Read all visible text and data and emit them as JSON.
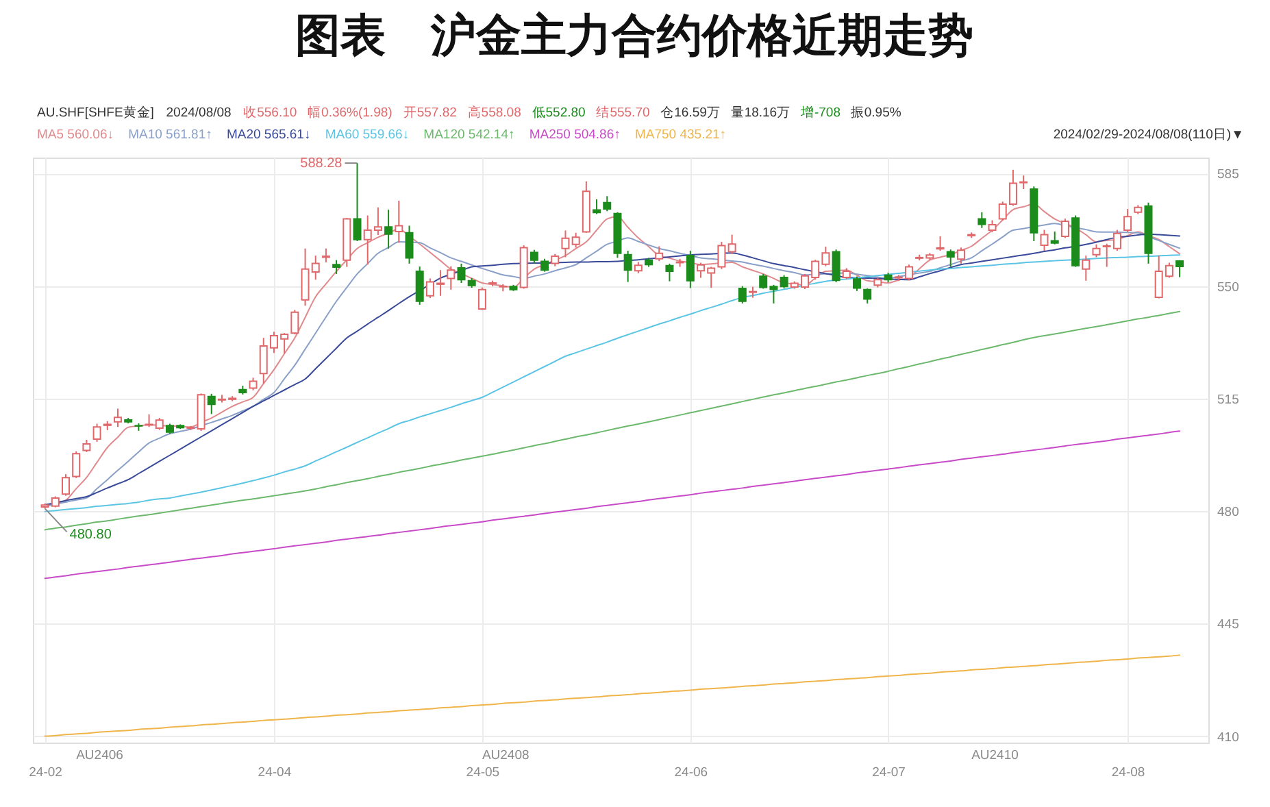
{
  "chart_data": {
    "type": "candlestick",
    "title": "图表　沪金主力合约价格近期走势",
    "subtitle": "AU.SHF[SHFE黄金]  2024/08/08  收556.10  幅0.36%(1.98)  开557.82  高558.08  低552.80  结555.70  仓16.59万  量18.16万  增-708  振0.95%",
    "categories": [
      "24-02",
      null,
      null,
      null,
      null,
      null,
      null,
      null,
      null,
      null,
      null,
      null,
      null,
      null,
      null,
      null,
      null,
      null,
      null,
      null,
      null,
      null,
      "24-04",
      null,
      null,
      null,
      null,
      null,
      null,
      null,
      null,
      null,
      null,
      null,
      null,
      null,
      null,
      null,
      null,
      null,
      null,
      null,
      "24-05",
      null,
      null,
      null,
      null,
      null,
      null,
      null,
      null,
      null,
      null,
      null,
      null,
      null,
      null,
      null,
      null,
      null,
      null,
      null,
      "24-06",
      null,
      null,
      null,
      null,
      null,
      null,
      null,
      null,
      null,
      null,
      null,
      null,
      null,
      null,
      null,
      null,
      null,
      null,
      "24-07",
      null,
      null,
      null,
      null,
      null,
      null,
      null,
      null,
      null,
      null,
      null,
      null,
      null,
      null,
      null,
      null,
      null,
      null,
      null,
      null,
      null,
      null,
      "24-08",
      null,
      null,
      null,
      null,
      null
    ],
    "ohlc": [
      [
        481.3,
        482.4,
        480.8,
        481.9
      ],
      [
        481.6,
        484.6,
        481.2,
        484.1
      ],
      [
        485.3,
        491.5,
        484.8,
        490.4
      ],
      [
        490.8,
        498.6,
        490.3,
        497.9
      ],
      [
        498.9,
        502.2,
        498.4,
        500.9
      ],
      [
        502.4,
        507.2,
        501.6,
        506.2
      ],
      [
        506.7,
        508.0,
        505.2,
        507.0
      ],
      [
        507.8,
        511.9,
        506.2,
        509.2
      ],
      [
        508.4,
        509.0,
        507.3,
        507.8
      ],
      [
        506.6,
        507.3,
        505.0,
        506.5
      ],
      [
        506.8,
        510.1,
        506.2,
        507.0
      ],
      [
        505.8,
        509.0,
        505.3,
        508.3
      ],
      [
        506.6,
        507.2,
        504.0,
        504.6
      ],
      [
        506.6,
        507.0,
        505.6,
        506.0
      ],
      [
        505.8,
        506.5,
        505.3,
        506.0
      ],
      [
        505.6,
        516.6,
        505.0,
        516.2
      ],
      [
        515.7,
        516.5,
        510.2,
        513.2
      ],
      [
        514.6,
        516.2,
        513.8,
        514.8
      ],
      [
        514.8,
        515.8,
        514.2,
        515.1
      ],
      [
        517.8,
        519.0,
        516.3,
        516.9
      ],
      [
        518.3,
        521.5,
        517.6,
        520.4
      ],
      [
        522.8,
        533.9,
        519.7,
        531.4
      ],
      [
        530.8,
        535.8,
        529.2,
        534.6
      ],
      [
        533.6,
        535.4,
        529.0,
        535.0
      ],
      [
        535.4,
        542.6,
        535.0,
        541.9
      ],
      [
        545.7,
        561.7,
        543.9,
        555.3
      ],
      [
        554.4,
        559.5,
        552.0,
        557.1
      ],
      [
        559.0,
        561.7,
        557.4,
        559.3
      ],
      [
        556.7,
        558.1,
        553.8,
        555.9
      ],
      [
        558.1,
        571.2,
        556.0,
        570.9
      ],
      [
        570.9,
        588.28,
        564.0,
        564.5
      ],
      [
        564.5,
        572.0,
        556.7,
        567.4
      ],
      [
        567.4,
        574.5,
        565.9,
        568.4
      ],
      [
        568.4,
        573.8,
        561.7,
        566.2
      ],
      [
        567.0,
        576.6,
        563.5,
        568.8
      ],
      [
        566.6,
        568.8,
        557.0,
        558.8
      ],
      [
        554.6,
        556.1,
        544.2,
        545.3
      ],
      [
        547.0,
        552.4,
        546.3,
        551.3
      ],
      [
        550.6,
        555.0,
        547.0,
        550.9
      ],
      [
        552.4,
        556.2,
        548.9,
        555.0
      ],
      [
        555.7,
        557.0,
        551.0,
        552.0
      ],
      [
        551.7,
        552.5,
        549.5,
        550.2
      ],
      [
        542.9,
        549.6,
        542.6,
        548.9
      ],
      [
        550.8,
        551.7,
        550.0,
        551.0
      ],
      [
        549.8,
        550.6,
        548.4,
        549.9
      ],
      [
        549.9,
        550.4,
        548.5,
        548.9
      ],
      [
        549.6,
        562.7,
        549.2,
        562.0
      ],
      [
        560.5,
        561.3,
        557.0,
        558.1
      ],
      [
        557.7,
        558.5,
        554.5,
        555.0
      ],
      [
        557.1,
        560.0,
        556.2,
        559.3
      ],
      [
        561.7,
        567.3,
        559.0,
        564.9
      ],
      [
        563.0,
        566.6,
        562.0,
        565.2
      ],
      [
        566.9,
        582.6,
        566.6,
        579.5
      ],
      [
        573.7,
        577.0,
        572.4,
        572.9
      ],
      [
        576.0,
        578.0,
        573.3,
        574.0
      ],
      [
        572.6,
        573.0,
        558.8,
        560.2
      ],
      [
        559.8,
        561.0,
        551.3,
        555.0
      ],
      [
        554.8,
        557.5,
        554.0,
        556.5
      ],
      [
        558.1,
        558.8,
        556.0,
        556.7
      ],
      [
        558.5,
        562.4,
        557.8,
        560.2
      ],
      [
        556.4,
        557.0,
        551.5,
        554.6
      ],
      [
        557.3,
        558.5,
        556.0,
        557.5
      ],
      [
        559.5,
        561.0,
        549.4,
        551.7
      ],
      [
        554.8,
        557.3,
        552.6,
        556.6
      ],
      [
        554.1,
        556.0,
        549.5,
        555.6
      ],
      [
        556.0,
        563.8,
        555.3,
        562.6
      ],
      [
        560.7,
        566.0,
        560.0,
        563.1
      ],
      [
        549.3,
        550.0,
        544.6,
        545.3
      ],
      [
        548.1,
        549.8,
        546.4,
        548.3
      ],
      [
        553.1,
        553.8,
        549.2,
        549.6
      ],
      [
        549.9,
        550.4,
        544.6,
        549.0
      ],
      [
        552.7,
        553.4,
        549.3,
        549.9
      ],
      [
        549.7,
        551.5,
        549.2,
        550.9
      ],
      [
        549.7,
        553.8,
        549.1,
        553.2
      ],
      [
        552.7,
        558.2,
        552.0,
        557.7
      ],
      [
        556.8,
        562.3,
        556.2,
        560.3
      ],
      [
        560.7,
        561.4,
        551.2,
        551.8
      ],
      [
        552.7,
        555.6,
        552.2,
        554.6
      ],
      [
        552.2,
        553.0,
        548.5,
        549.4
      ],
      [
        548.9,
        549.3,
        544.6,
        546.0
      ],
      [
        550.3,
        552.6,
        549.6,
        552.0
      ],
      [
        553.4,
        554.2,
        551.2,
        552.0
      ],
      [
        552.6,
        553.5,
        551.6,
        552.8
      ],
      [
        552.4,
        556.7,
        551.8,
        556.0
      ],
      [
        558.7,
        559.8,
        558.0,
        558.9
      ],
      [
        558.8,
        560.3,
        558.2,
        559.7
      ],
      [
        561.6,
        565.5,
        561.0,
        561.9
      ],
      [
        560.7,
        561.4,
        556.0,
        559.1
      ],
      [
        558.4,
        562.0,
        557.0,
        561.2
      ],
      [
        565.7,
        566.7,
        565.0,
        566.0
      ],
      [
        570.9,
        573.0,
        568.1,
        569.2
      ],
      [
        567.4,
        570.5,
        566.8,
        569.1
      ],
      [
        570.9,
        576.3,
        570.4,
        575.5
      ],
      [
        575.5,
        586.2,
        575.0,
        582.0
      ],
      [
        582.2,
        584.4,
        580.2,
        582.4
      ],
      [
        580.2,
        581.0,
        564.0,
        566.6
      ],
      [
        562.7,
        567.5,
        561.0,
        566.0
      ],
      [
        564.1,
        567.0,
        563.0,
        563.4
      ],
      [
        565.5,
        571.0,
        565.0,
        570.2
      ],
      [
        571.2,
        572.0,
        556.0,
        556.4
      ],
      [
        555.3,
        559.5,
        551.7,
        558.1
      ],
      [
        559.8,
        563.0,
        559.0,
        561.7
      ],
      [
        562.3,
        563.2,
        556.0,
        562.5
      ],
      [
        561.7,
        567.5,
        561.0,
        566.4
      ],
      [
        567.4,
        574.0,
        566.8,
        571.6
      ],
      [
        573.0,
        575.2,
        572.4,
        574.5
      ],
      [
        574.9,
        576.0,
        557.0,
        560.2
      ],
      [
        546.5,
        559.5,
        546.2,
        554.6
      ],
      [
        553.1,
        557.3,
        552.6,
        556.4
      ],
      [
        557.82,
        558.08,
        552.8,
        556.1
      ]
    ],
    "colors": [
      "#e0686b",
      "#e0686b",
      "#e0686b",
      "#e0686b",
      "#e0686b",
      "#e0686b",
      "#e0686b",
      "#e0686b",
      "#1b8c1b",
      "#1b8c1b",
      "#e0686b",
      "#e0686b",
      "#1b8c1b",
      "#1b8c1b",
      "#e0686b",
      "#e0686b",
      "#1b8c1b",
      "#e0686b",
      "#e0686b",
      "#1b8c1b",
      "#e0686b",
      "#e0686b",
      "#e0686b",
      "#e0686b",
      "#e0686b",
      "#e0686b",
      "#e0686b",
      "#e0686b",
      "#1b8c1b",
      "#e0686b",
      "#1b8c1b",
      "#e0686b",
      "#e0686b",
      "#1b8c1b",
      "#e0686b",
      "#1b8c1b",
      "#1b8c1b",
      "#e0686b",
      "#e0686b",
      "#e0686b",
      "#1b8c1b",
      "#1b8c1b",
      "#e0686b",
      "#e0686b",
      "#e0686b",
      "#1b8c1b",
      "#e0686b",
      "#1b8c1b",
      "#1b8c1b",
      "#e0686b",
      "#e0686b",
      "#e0686b",
      "#e0686b",
      "#1b8c1b",
      "#1b8c1b",
      "#1b8c1b",
      "#1b8c1b",
      "#e0686b",
      "#1b8c1b",
      "#e0686b",
      "#1b8c1b",
      "#e0686b",
      "#1b8c1b",
      "#e0686b",
      "#e0686b",
      "#e0686b",
      "#e0686b",
      "#1b8c1b",
      "#e0686b",
      "#1b8c1b",
      "#1b8c1b",
      "#1b8c1b",
      "#e0686b",
      "#e0686b",
      "#e0686b",
      "#e0686b",
      "#1b8c1b",
      "#e0686b",
      "#1b8c1b",
      "#1b8c1b",
      "#e0686b",
      "#1b8c1b",
      "#e0686b",
      "#e0686b",
      "#e0686b",
      "#e0686b",
      "#e0686b",
      "#1b8c1b",
      "#e0686b",
      "#e0686b",
      "#1b8c1b",
      "#e0686b",
      "#e0686b",
      "#e0686b",
      "#e0686b",
      "#1b8c1b",
      "#e0686b",
      "#1b8c1b",
      "#e0686b",
      "#1b8c1b",
      "#e0686b",
      "#e0686b",
      "#e0686b",
      "#e0686b",
      "#e0686b",
      "#e0686b",
      "#1b8c1b",
      "#e0686b",
      "#e0686b",
      "#1b8c1b"
    ],
    "series": [
      {
        "name": "MA5 560.06↓",
        "type": "line",
        "color": "#e08a8e",
        "values": [
          481.4,
          482.4,
          483.4,
          487.0,
          490.5,
          495.2,
          499.8,
          503.0,
          506.1,
          506.5,
          506.9,
          506.7,
          506.5,
          506.4,
          506.2,
          507.6,
          509.0,
          510.8,
          512.6,
          514.0,
          515.4,
          519.7,
          524.0,
          529.0,
          533.9,
          540.3,
          546.7,
          550.7,
          554.6,
          558.2,
          561.7,
          563.5,
          565.2,
          566.5,
          567.8,
          565.5,
          563.1,
          560.5,
          557.9,
          555.3,
          553.9,
          552.4,
          551.0,
          550.5,
          550.1,
          549.6,
          552.5,
          555.3,
          556.7,
          558.1,
          559.5,
          561.7,
          563.8,
          567.4,
          570.9,
          571.6,
          568.3,
          565.0,
          562.3,
          559.5,
          558.7,
          557.8,
          557.3,
          556.7,
          556.9,
          557.2,
          557.4,
          556.0,
          554.9,
          553.8,
          552.4,
          551.0,
          550.7,
          550.3,
          552.5,
          554.6,
          554.8,
          555.0,
          553.4,
          551.7,
          551.4,
          551.0,
          551.9,
          552.7,
          555.4,
          558.1,
          559.0,
          559.8,
          561.1,
          562.4,
          564.9,
          567.4,
          570.6,
          573.8,
          574.7,
          575.5,
          573.2,
          570.9,
          569.5,
          568.1,
          566.0,
          563.8,
          564.2,
          564.5,
          565.7,
          566.9,
          565.7,
          564.5,
          562.3,
          560.1
        ]
      },
      {
        "name": "MA10 561.81↑",
        "type": "line",
        "color": "#8aa0c8",
        "values": [
          481.5,
          482.2,
          482.8,
          483.5,
          484.1,
          487.0,
          489.8,
          492.7,
          495.5,
          498.4,
          501.2,
          502.7,
          504.1,
          504.8,
          505.5,
          506.6,
          507.6,
          508.7,
          509.8,
          511.2,
          512.6,
          514.8,
          516.9,
          521.2,
          525.4,
          530.4,
          535.4,
          540.4,
          545.3,
          549.6,
          553.8,
          557.0,
          560.2,
          562.0,
          563.8,
          563.7,
          563.5,
          561.9,
          560.4,
          558.8,
          557.7,
          556.6,
          555.5,
          554.5,
          553.5,
          553.0,
          552.4,
          553.1,
          553.8,
          554.8,
          555.7,
          556.7,
          558.8,
          560.9,
          563.0,
          564.0,
          565.0,
          563.9,
          562.8,
          561.7,
          561.0,
          560.2,
          559.5,
          558.8,
          558.5,
          558.2,
          557.8,
          557.5,
          556.8,
          556.2,
          555.5,
          554.8,
          554.2,
          553.5,
          553.7,
          553.8,
          554.0,
          554.1,
          553.7,
          553.3,
          552.8,
          552.4,
          553.0,
          553.5,
          554.1,
          554.6,
          555.7,
          556.7,
          557.8,
          558.8,
          561.0,
          563.1,
          565.3,
          567.4,
          567.9,
          568.5,
          569.0,
          569.5,
          568.9,
          568.2,
          567.6,
          566.9,
          566.8,
          566.8,
          566.7,
          566.6,
          565.4,
          564.2,
          563.0,
          561.8
        ]
      },
      {
        "name": "MA20 565.61↓",
        "type": "line",
        "color": "#3a4a9a",
        "values": [
          482.0,
          482.6,
          483.3,
          483.9,
          484.5,
          485.8,
          487.2,
          488.5,
          489.8,
          491.7,
          493.6,
          495.5,
          497.4,
          499.3,
          501.2,
          503.1,
          505.0,
          506.9,
          508.8,
          510.7,
          512.6,
          514.3,
          516.0,
          517.7,
          519.4,
          521.1,
          524.3,
          527.5,
          530.7,
          533.9,
          536.0,
          538.2,
          540.3,
          542.4,
          544.6,
          546.7,
          548.6,
          550.6,
          552.5,
          553.7,
          554.8,
          556.0,
          556.3,
          556.5,
          556.8,
          557.0,
          557.1,
          557.2,
          557.2,
          557.3,
          557.4,
          557.5,
          557.5,
          557.6,
          557.6,
          557.7,
          558.0,
          558.2,
          558.5,
          558.8,
          559.1,
          559.4,
          559.7,
          559.9,
          560.0,
          560.2,
          560.3,
          559.7,
          558.8,
          557.9,
          557.0,
          556.4,
          555.8,
          555.1,
          554.5,
          553.9,
          553.3,
          552.7,
          552.6,
          552.5,
          552.4,
          552.2,
          552.1,
          552.0,
          552.9,
          553.9,
          554.8,
          555.8,
          556.7,
          557.2,
          557.7,
          558.2,
          558.7,
          559.2,
          559.7,
          560.2,
          560.8,
          561.3,
          561.9,
          562.4,
          563.0,
          563.7,
          564.5,
          565.2,
          565.5,
          565.9,
          566.2,
          566.0,
          565.8,
          565.6
        ]
      },
      {
        "name": "MA60 559.66↓",
        "type": "line",
        "color": "#5cc4e4",
        "values": [
          479.9,
          480.2,
          480.5,
          480.8,
          481.1,
          481.5,
          481.8,
          482.1,
          482.4,
          482.8,
          483.4,
          483.8,
          484.1,
          484.7,
          485.3,
          485.9,
          486.6,
          487.3,
          488.0,
          488.7,
          489.5,
          490.3,
          491.2,
          492.2,
          493.1,
          494.1,
          495.6,
          497.0,
          498.5,
          499.9,
          501.4,
          502.8,
          504.3,
          505.7,
          507.2,
          508.2,
          509.3,
          510.3,
          511.3,
          512.3,
          513.4,
          514.4,
          515.4,
          517.0,
          518.6,
          520.2,
          521.8,
          523.4,
          525.0,
          526.6,
          528.2,
          529.3,
          530.4,
          531.5,
          532.6,
          533.8,
          534.9,
          536.0,
          537.1,
          538.2,
          539.2,
          540.3,
          541.3,
          542.4,
          543.4,
          544.4,
          545.5,
          546.5,
          547.1,
          547.8,
          548.4,
          549.0,
          549.6,
          550.3,
          550.9,
          551.5,
          551.9,
          552.2,
          552.6,
          552.9,
          553.3,
          553.6,
          554.0,
          554.3,
          554.7,
          555.0,
          555.3,
          555.5,
          555.8,
          556.0,
          556.3,
          556.5,
          556.8,
          557.0,
          557.3,
          557.5,
          557.7,
          557.9,
          558.1,
          558.2,
          558.4,
          558.6,
          558.8,
          558.9,
          559.0,
          559.2,
          559.3,
          559.4,
          559.6,
          559.7
        ]
      },
      {
        "name": "MA120 542.14↑",
        "type": "line",
        "color": "#6cb86c",
        "values": [
          474.2,
          474.7,
          475.1,
          475.6,
          476.1,
          476.6,
          477.0,
          477.5,
          478.0,
          478.5,
          478.9,
          479.4,
          479.9,
          480.4,
          480.9,
          481.4,
          481.9,
          482.4,
          482.9,
          483.4,
          483.8,
          484.3,
          484.8,
          485.3,
          485.8,
          486.3,
          486.9,
          487.6,
          488.2,
          488.9,
          489.5,
          490.1,
          490.8,
          491.4,
          492.1,
          492.7,
          493.3,
          494.0,
          494.6,
          495.2,
          495.9,
          496.5,
          497.1,
          497.7,
          498.4,
          499.0,
          499.7,
          500.4,
          501.0,
          501.7,
          502.4,
          503.1,
          503.7,
          504.4,
          505.1,
          505.8,
          506.5,
          507.1,
          507.8,
          508.5,
          509.2,
          509.9,
          510.6,
          511.3,
          512.0,
          512.7,
          513.4,
          514.1,
          514.8,
          515.5,
          516.2,
          516.8,
          517.5,
          518.2,
          518.8,
          519.5,
          520.2,
          520.8,
          521.5,
          522.2,
          522.8,
          523.5,
          524.3,
          525.0,
          525.8,
          526.5,
          527.3,
          528.0,
          528.8,
          529.5,
          530.3,
          531.0,
          531.8,
          532.5,
          533.3,
          534.0,
          534.6,
          535.1,
          535.7,
          536.3,
          536.9,
          537.4,
          538.0,
          538.6,
          539.2,
          539.8,
          540.3,
          540.9,
          541.5,
          542.1
        ]
      },
      {
        "name": "MA250 504.86↑",
        "type": "line",
        "color": "#c84ac8",
        "values": [
          459.1,
          459.5,
          459.9,
          460.4,
          460.8,
          461.2,
          461.6,
          462.0,
          462.5,
          462.9,
          463.3,
          463.7,
          464.1,
          464.6,
          465.0,
          465.4,
          465.8,
          466.2,
          466.7,
          467.1,
          467.5,
          467.9,
          468.3,
          468.8,
          469.2,
          469.6,
          470.0,
          470.4,
          470.9,
          471.3,
          471.7,
          472.1,
          472.5,
          473.0,
          473.4,
          473.8,
          474.2,
          474.6,
          475.1,
          475.5,
          475.9,
          476.3,
          476.7,
          477.2,
          477.6,
          478.0,
          478.4,
          478.8,
          479.3,
          479.7,
          480.1,
          480.5,
          480.9,
          481.4,
          481.8,
          482.2,
          482.6,
          483.0,
          483.5,
          483.9,
          484.3,
          484.7,
          485.1,
          485.6,
          486.0,
          486.4,
          486.8,
          487.2,
          487.7,
          488.1,
          488.5,
          488.9,
          489.3,
          489.8,
          490.2,
          490.6,
          491.0,
          491.4,
          491.9,
          492.3,
          492.7,
          493.1,
          493.5,
          494.0,
          494.4,
          494.8,
          495.2,
          495.6,
          496.1,
          496.5,
          496.9,
          497.3,
          497.7,
          498.2,
          498.6,
          499.0,
          499.4,
          499.8,
          500.3,
          500.7,
          501.1,
          501.5,
          501.9,
          502.4,
          502.8,
          503.2,
          503.6,
          504.0,
          504.5,
          504.9
        ]
      },
      {
        "name": "MA750 435.21↑",
        "type": "line",
        "color": "#f0b54a",
        "values": [
          410.0,
          410.2,
          410.5,
          410.7,
          410.9,
          411.2,
          411.4,
          411.6,
          411.8,
          412.1,
          412.3,
          412.5,
          412.8,
          413.0,
          413.2,
          413.5,
          413.7,
          413.9,
          414.2,
          414.4,
          414.6,
          414.9,
          415.1,
          415.3,
          415.5,
          415.8,
          416.0,
          416.2,
          416.5,
          416.7,
          416.9,
          417.2,
          417.4,
          417.6,
          417.9,
          418.1,
          418.3,
          418.5,
          418.8,
          419.0,
          419.2,
          419.5,
          419.7,
          419.9,
          420.2,
          420.4,
          420.6,
          420.9,
          421.1,
          421.3,
          421.6,
          421.8,
          422.0,
          422.2,
          422.5,
          422.7,
          422.9,
          423.2,
          423.4,
          423.6,
          423.9,
          424.1,
          424.3,
          424.6,
          424.8,
          425.0,
          425.2,
          425.5,
          425.7,
          425.9,
          426.2,
          426.4,
          426.6,
          426.9,
          427.1,
          427.3,
          427.6,
          427.8,
          428.0,
          428.2,
          428.5,
          428.7,
          428.9,
          429.2,
          429.4,
          429.6,
          429.9,
          430.1,
          430.3,
          430.6,
          430.8,
          431.0,
          431.3,
          431.5,
          431.7,
          431.9,
          432.2,
          432.4,
          432.6,
          432.9,
          433.1,
          433.3,
          433.6,
          433.8,
          434.0,
          434.3,
          434.5,
          434.7,
          434.9,
          435.2
        ]
      }
    ],
    "ylim": [
      408,
      590
    ],
    "yticks": [
      410,
      445,
      480,
      515,
      550,
      585
    ],
    "annotations": [
      "588.28",
      {
        "text": "480.80",
        "y": 480.8
      },
      "2024/02/29-2024/08/08(110日)▼",
      "AU2406",
      "AU2408",
      "AU2410"
    ],
    "grid": true,
    "legend": "top left"
  }
}
